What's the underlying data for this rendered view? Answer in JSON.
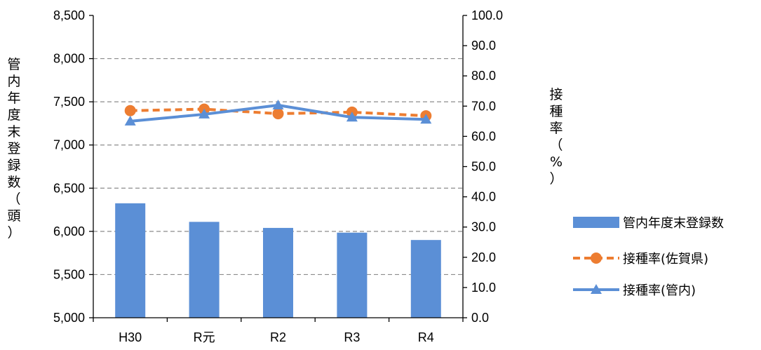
{
  "chart_data": {
    "type": "bar+line",
    "categories": [
      "H30",
      "R元",
      "R2",
      "R3",
      "R4"
    ],
    "bar_series": {
      "name": "管内年度末登録数",
      "color": "#5B8FD6",
      "values": [
        6325,
        6110,
        6040,
        5985,
        5900
      ]
    },
    "line_series": [
      {
        "name": "接種率(佐賀県)",
        "color": "#ED7D31",
        "dashed": true,
        "marker": "circle",
        "values": [
          68.5,
          69.0,
          67.5,
          68.0,
          66.8
        ]
      },
      {
        "name": "接種率(管内)",
        "color": "#5B8FD6",
        "dashed": false,
        "marker": "triangle",
        "values": [
          65.0,
          67.3,
          70.3,
          66.3,
          65.6
        ]
      }
    ],
    "y_left": {
      "label_chars": [
        "管",
        "内",
        "年",
        "度",
        "末",
        "登",
        "録",
        "数",
        "（",
        "頭",
        "）"
      ],
      "min": 5000,
      "max": 8500,
      "step": 500,
      "tick_labels": [
        "5,000",
        "5,500",
        "6,000",
        "6,500",
        "7,000",
        "7,500",
        "8,000",
        "8,500"
      ]
    },
    "y_right": {
      "label_chars": [
        "接",
        "種",
        "率",
        "（",
        "%",
        "）"
      ],
      "min": 0,
      "max": 100,
      "step": 10,
      "tick_labels": [
        "0.0",
        "10.0",
        "20.0",
        "30.0",
        "40.0",
        "50.0",
        "60.0",
        "70.0",
        "80.0",
        "90.0",
        "100.0"
      ]
    },
    "grid": true,
    "legend_position": "right"
  }
}
